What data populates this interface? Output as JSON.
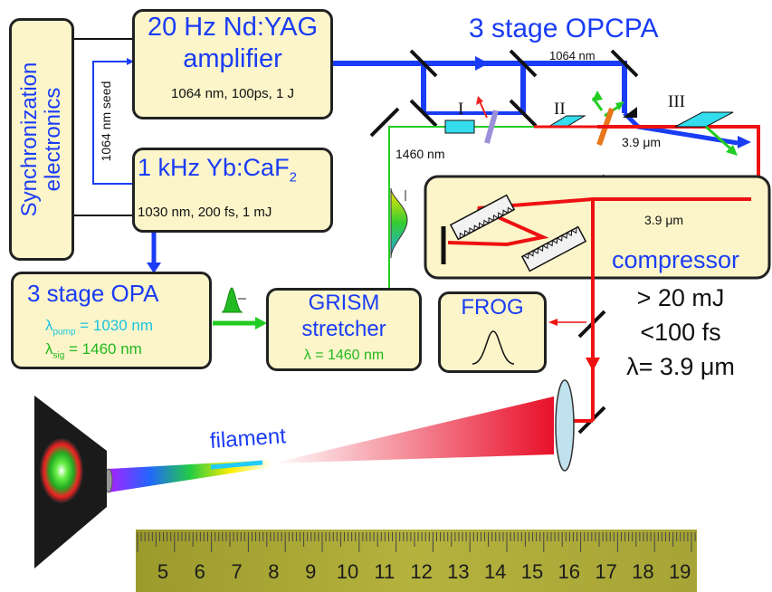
{
  "sync": {
    "label_line1": "Synchronization",
    "label_line2": "electronics"
  },
  "seed_label": "1064 nm seed",
  "ndyag": {
    "title_line1": "20 Hz Nd:YAG",
    "title_line2": "amplifier",
    "spec": "1064 nm, 100ps, 1 J"
  },
  "yb": {
    "title": "1 kHz Yb:CaF",
    "title_sub": "2",
    "spec": "1030 nm, 200 fs, 1 mJ"
  },
  "opa": {
    "title": "3 stage OPA",
    "pump_symbol": "λ",
    "pump_sub": "pump",
    "pump_value": " = 1030 nm",
    "sig_symbol": "λ",
    "sig_sub": "sig",
    "sig_value": " = 1460 nm"
  },
  "grism": {
    "title_line1": "GRISM",
    "title_line2": "stretcher",
    "wavelength": "λ = 1460 nm"
  },
  "frog": {
    "title": "FROG"
  },
  "opcpa": {
    "title": "3 stage OPCPA",
    "pump_wavelength": "1064 nm",
    "stage1": "I",
    "stage2": "II",
    "stage3": "III",
    "idler_wavelength": "3.9 μm",
    "seed_wavelength": "1460 nm"
  },
  "compressor": {
    "title": "compressor",
    "wavelength": "3.9 μm"
  },
  "output": {
    "energy": "> 20 mJ",
    "duration": "<100 fs",
    "wavelength": "λ= 3.9 μm"
  },
  "filament_label": "filament",
  "ruler": {
    "numbers": [
      "5",
      "6",
      "7",
      "8",
      "9",
      "10",
      "11",
      "12",
      "13",
      "14",
      "15",
      "16",
      "17",
      "18",
      "19"
    ]
  },
  "colors": {
    "box_fill": "#fbf5c9",
    "pump_blue": "#1a3cf5",
    "signal_green": "#22cc22",
    "idler_red": "#ee1111"
  }
}
